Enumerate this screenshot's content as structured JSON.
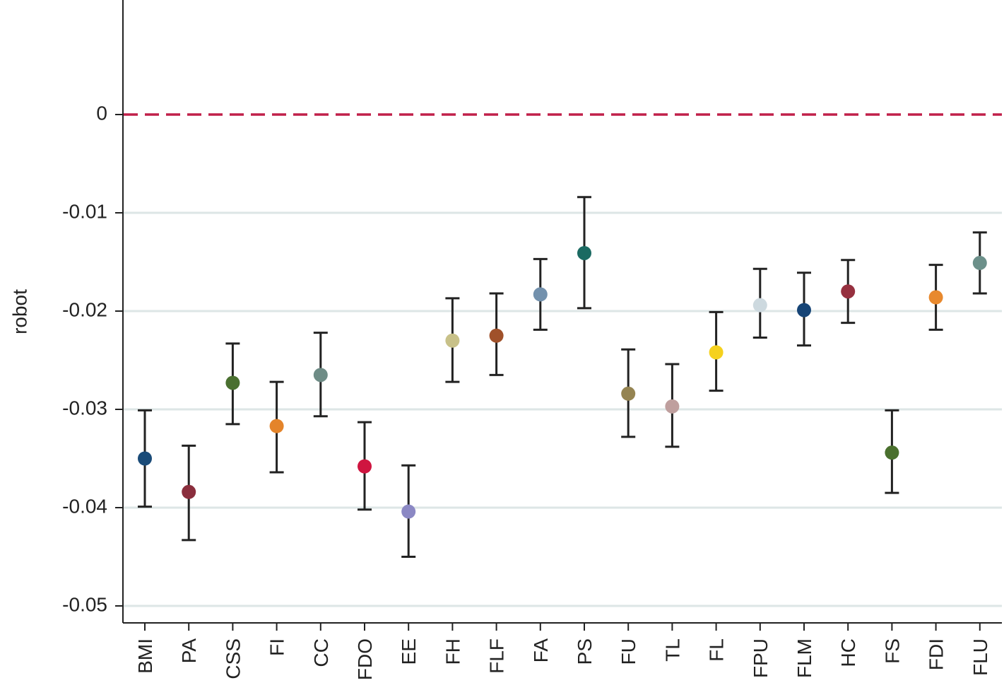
{
  "chart_data": {
    "type": "scatter",
    "subtype": "point-with-error-bars",
    "title": "",
    "xlabel": "",
    "ylabel": "robot",
    "ylim": [
      -0.0518,
      0.0115
    ],
    "yticks": [
      0,
      -0.01,
      -0.02,
      -0.03,
      -0.04,
      -0.05
    ],
    "ytick_labels": [
      "0",
      "-0.01",
      "-0.02",
      "-0.03",
      "-0.04",
      "-0.05"
    ],
    "grid": "horizontal",
    "reference_line": {
      "y": 0,
      "style": "dashed",
      "color": "#c0204a"
    },
    "categories": [
      "BMI",
      "PA",
      "CSS",
      "FI",
      "CC",
      "FDO",
      "EE",
      "FH",
      "FLF",
      "FA",
      "PS",
      "FU",
      "TL",
      "FL",
      "FPU",
      "FLM",
      "HC",
      "FS",
      "FDI",
      "FLU"
    ],
    "values": [
      -0.035,
      -0.0384,
      -0.0273,
      -0.0317,
      -0.0265,
      -0.0358,
      -0.0404,
      -0.023,
      -0.0225,
      -0.0183,
      -0.0141,
      -0.0284,
      -0.0297,
      -0.0242,
      -0.0194,
      -0.0199,
      -0.018,
      -0.0344,
      -0.0186,
      -0.0151
    ],
    "lower": [
      -0.0399,
      -0.0433,
      -0.0315,
      -0.0364,
      -0.0307,
      -0.0402,
      -0.045,
      -0.0272,
      -0.0265,
      -0.0219,
      -0.0197,
      -0.0328,
      -0.0338,
      -0.0281,
      -0.0227,
      -0.0235,
      -0.0212,
      -0.0385,
      -0.0219,
      -0.0182
    ],
    "upper": [
      -0.0301,
      -0.0337,
      -0.0233,
      -0.0272,
      -0.0222,
      -0.0313,
      -0.0357,
      -0.0187,
      -0.0182,
      -0.0147,
      -0.0084,
      -0.0239,
      -0.0254,
      -0.0201,
      -0.0157,
      -0.0161,
      -0.0148,
      -0.0301,
      -0.0153,
      -0.012
    ],
    "point_colors": [
      "#1a4b78",
      "#8a2e3d",
      "#4a7030",
      "#e4842a",
      "#6e8c86",
      "#cf1540",
      "#8b88c4",
      "#c8c189",
      "#a0512a",
      "#7391ad",
      "#1b6a62",
      "#958452",
      "#bf9f9e",
      "#f5d11d",
      "#cdd9df",
      "#164476",
      "#96303f",
      "#4a702e",
      "#e8892e",
      "#6c908a"
    ],
    "errorbar_color": "#222222",
    "grid_color": "#dde6e6"
  }
}
